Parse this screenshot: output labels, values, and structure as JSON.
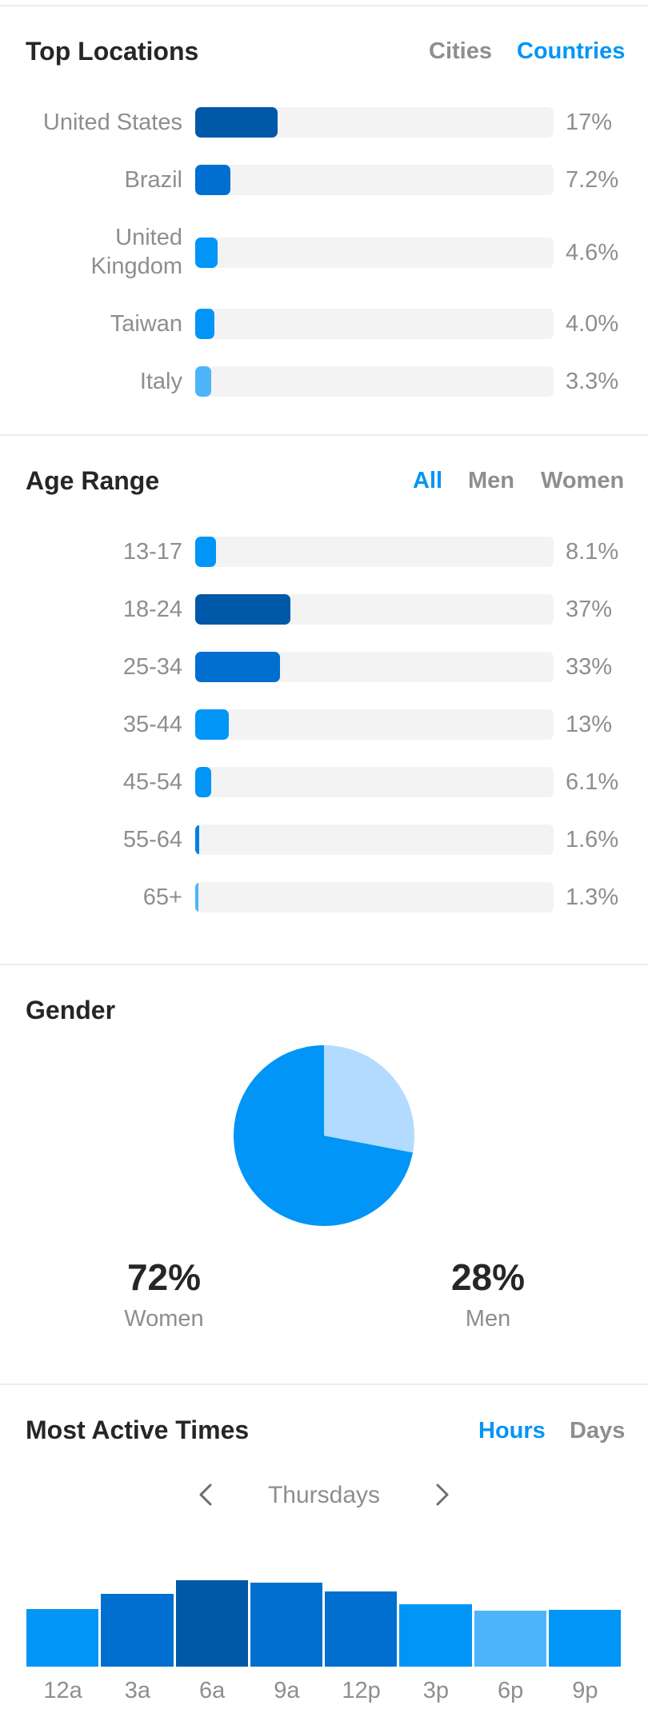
{
  "top_locations": {
    "title": "Top Locations",
    "toggles": [
      {
        "label": "Cities",
        "active": false
      },
      {
        "label": "Countries",
        "active": true
      }
    ],
    "items": [
      {
        "label_lines": [
          "United States"
        ],
        "value": 17,
        "display": "17%",
        "color": "#0058a8"
      },
      {
        "label_lines": [
          "Brazil"
        ],
        "value": 7.2,
        "display": "7.2%",
        "color": "#006fcf"
      },
      {
        "label_lines": [
          "United",
          "Kingdom"
        ],
        "value": 4.6,
        "display": "4.6%",
        "color": "#0095f6"
      },
      {
        "label_lines": [
          "Taiwan"
        ],
        "value": 4.0,
        "display": "4.0%",
        "color": "#0095f6"
      },
      {
        "label_lines": [
          "Italy"
        ],
        "value": 3.3,
        "display": "3.3%",
        "color": "#4cb5f9"
      }
    ]
  },
  "age_range": {
    "title": "Age Range",
    "toggles": [
      {
        "label": "All",
        "active": true
      },
      {
        "label": "Men",
        "active": false
      },
      {
        "label": "Women",
        "active": false
      }
    ],
    "items": [
      {
        "label": "13-17",
        "value": 8.1,
        "display": "8.1%",
        "color": "#0095f6"
      },
      {
        "label": "18-24",
        "value": 37,
        "display": "37%",
        "color": "#0058a8"
      },
      {
        "label": "25-34",
        "value": 33,
        "display": "33%",
        "color": "#006fcf"
      },
      {
        "label": "35-44",
        "value": 13,
        "display": "13%",
        "color": "#0095f6"
      },
      {
        "label": "45-54",
        "value": 6.1,
        "display": "6.1%",
        "color": "#0095f6"
      },
      {
        "label": "55-64",
        "value": 1.6,
        "display": "1.6%",
        "color": "#0080e0"
      },
      {
        "label": "65+",
        "value": 1.3,
        "display": "1.3%",
        "color": "#4cb5f9"
      }
    ]
  },
  "gender": {
    "title": "Gender",
    "women_pct": "72%",
    "women_label": "Women",
    "men_pct": "28%",
    "men_label": "Men",
    "colors": {
      "women": "#0095f6",
      "men": "#b3dbff"
    }
  },
  "active_times": {
    "title": "Most Active Times",
    "toggles": [
      {
        "label": "Hours",
        "active": true
      },
      {
        "label": "Days",
        "active": false
      }
    ],
    "day": "Thursdays",
    "prev_icon": "chevron-left-icon",
    "next_icon": "chevron-right-icon"
  },
  "chart_data": {
    "type": "bar",
    "categories": [
      "12a",
      "3a",
      "6a",
      "9a",
      "12p",
      "3p",
      "6p",
      "9p"
    ],
    "values": [
      67,
      84,
      100,
      97,
      87,
      72,
      65,
      66
    ],
    "colors": [
      "#0095f6",
      "#006fcf",
      "#0058a8",
      "#006fcf",
      "#006fcf",
      "#0095f6",
      "#4cb5f9",
      "#0095f6"
    ],
    "ylim": [
      0,
      100
    ],
    "grid": false
  }
}
